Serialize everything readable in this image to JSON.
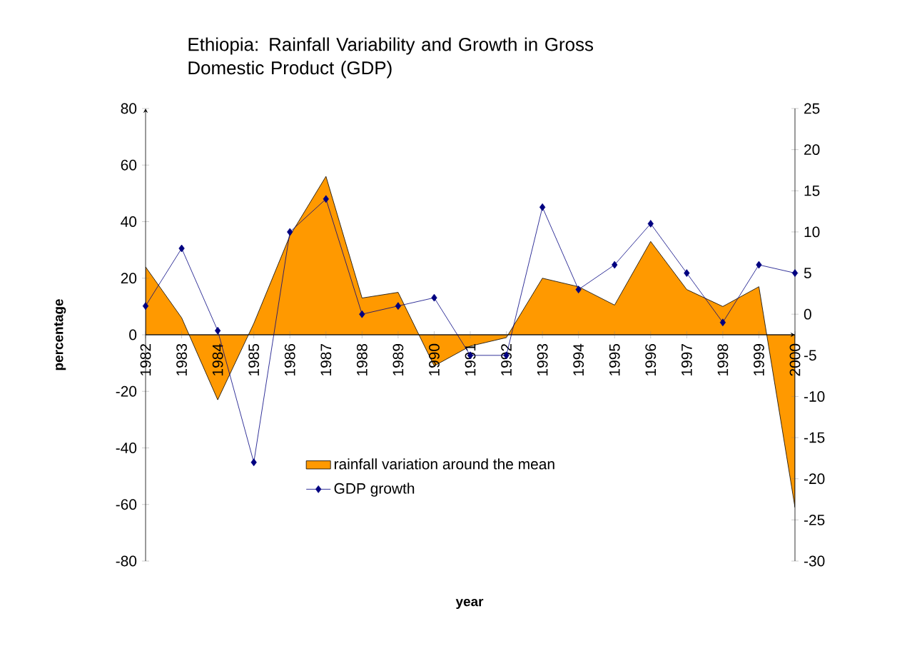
{
  "chart_data": {
    "type": "area",
    "title": "Ethiopia: Rainfall Variability and Growth in Gross Domestic Product (GDP)",
    "xlabel": "year",
    "ylabel": "percentage",
    "categories": [
      "1982",
      "1983",
      "1984",
      "1985",
      "1986",
      "1987",
      "1988",
      "1989",
      "1990",
      "1991",
      "1992",
      "1993",
      "1994",
      "1995",
      "1996",
      "1997",
      "1998",
      "1999",
      "2000"
    ],
    "series": [
      {
        "name": "rainfall variation around the mean",
        "color": "#ff9900",
        "values": [
          24,
          6,
          -23,
          4,
          35,
          56,
          13,
          15,
          -11,
          -4,
          -1,
          20,
          17,
          10.5,
          33,
          16,
          10,
          17,
          -61
        ]
      },
      {
        "name": "GDP growth",
        "type": "line",
        "axis": "y2",
        "color": "#000080",
        "marker": "diamond",
        "line_style": "solid",
        "values": [
          1,
          8,
          -2,
          -18,
          10,
          14,
          0,
          1,
          2,
          -5,
          -5,
          13,
          3,
          6,
          11,
          5,
          -1,
          6,
          5
        ]
      }
    ],
    "ylim": [
      -80,
      80
    ],
    "yticks": [
      -80,
      -60,
      -40,
      -20,
      0,
      20,
      40,
      60,
      80
    ],
    "y2lim": [
      -30,
      25
    ],
    "y2ticks": [
      -30,
      -25,
      -20,
      -15,
      -10,
      -5,
      0,
      5,
      10,
      15,
      20,
      25
    ],
    "grid": false,
    "legend": "bottom"
  }
}
